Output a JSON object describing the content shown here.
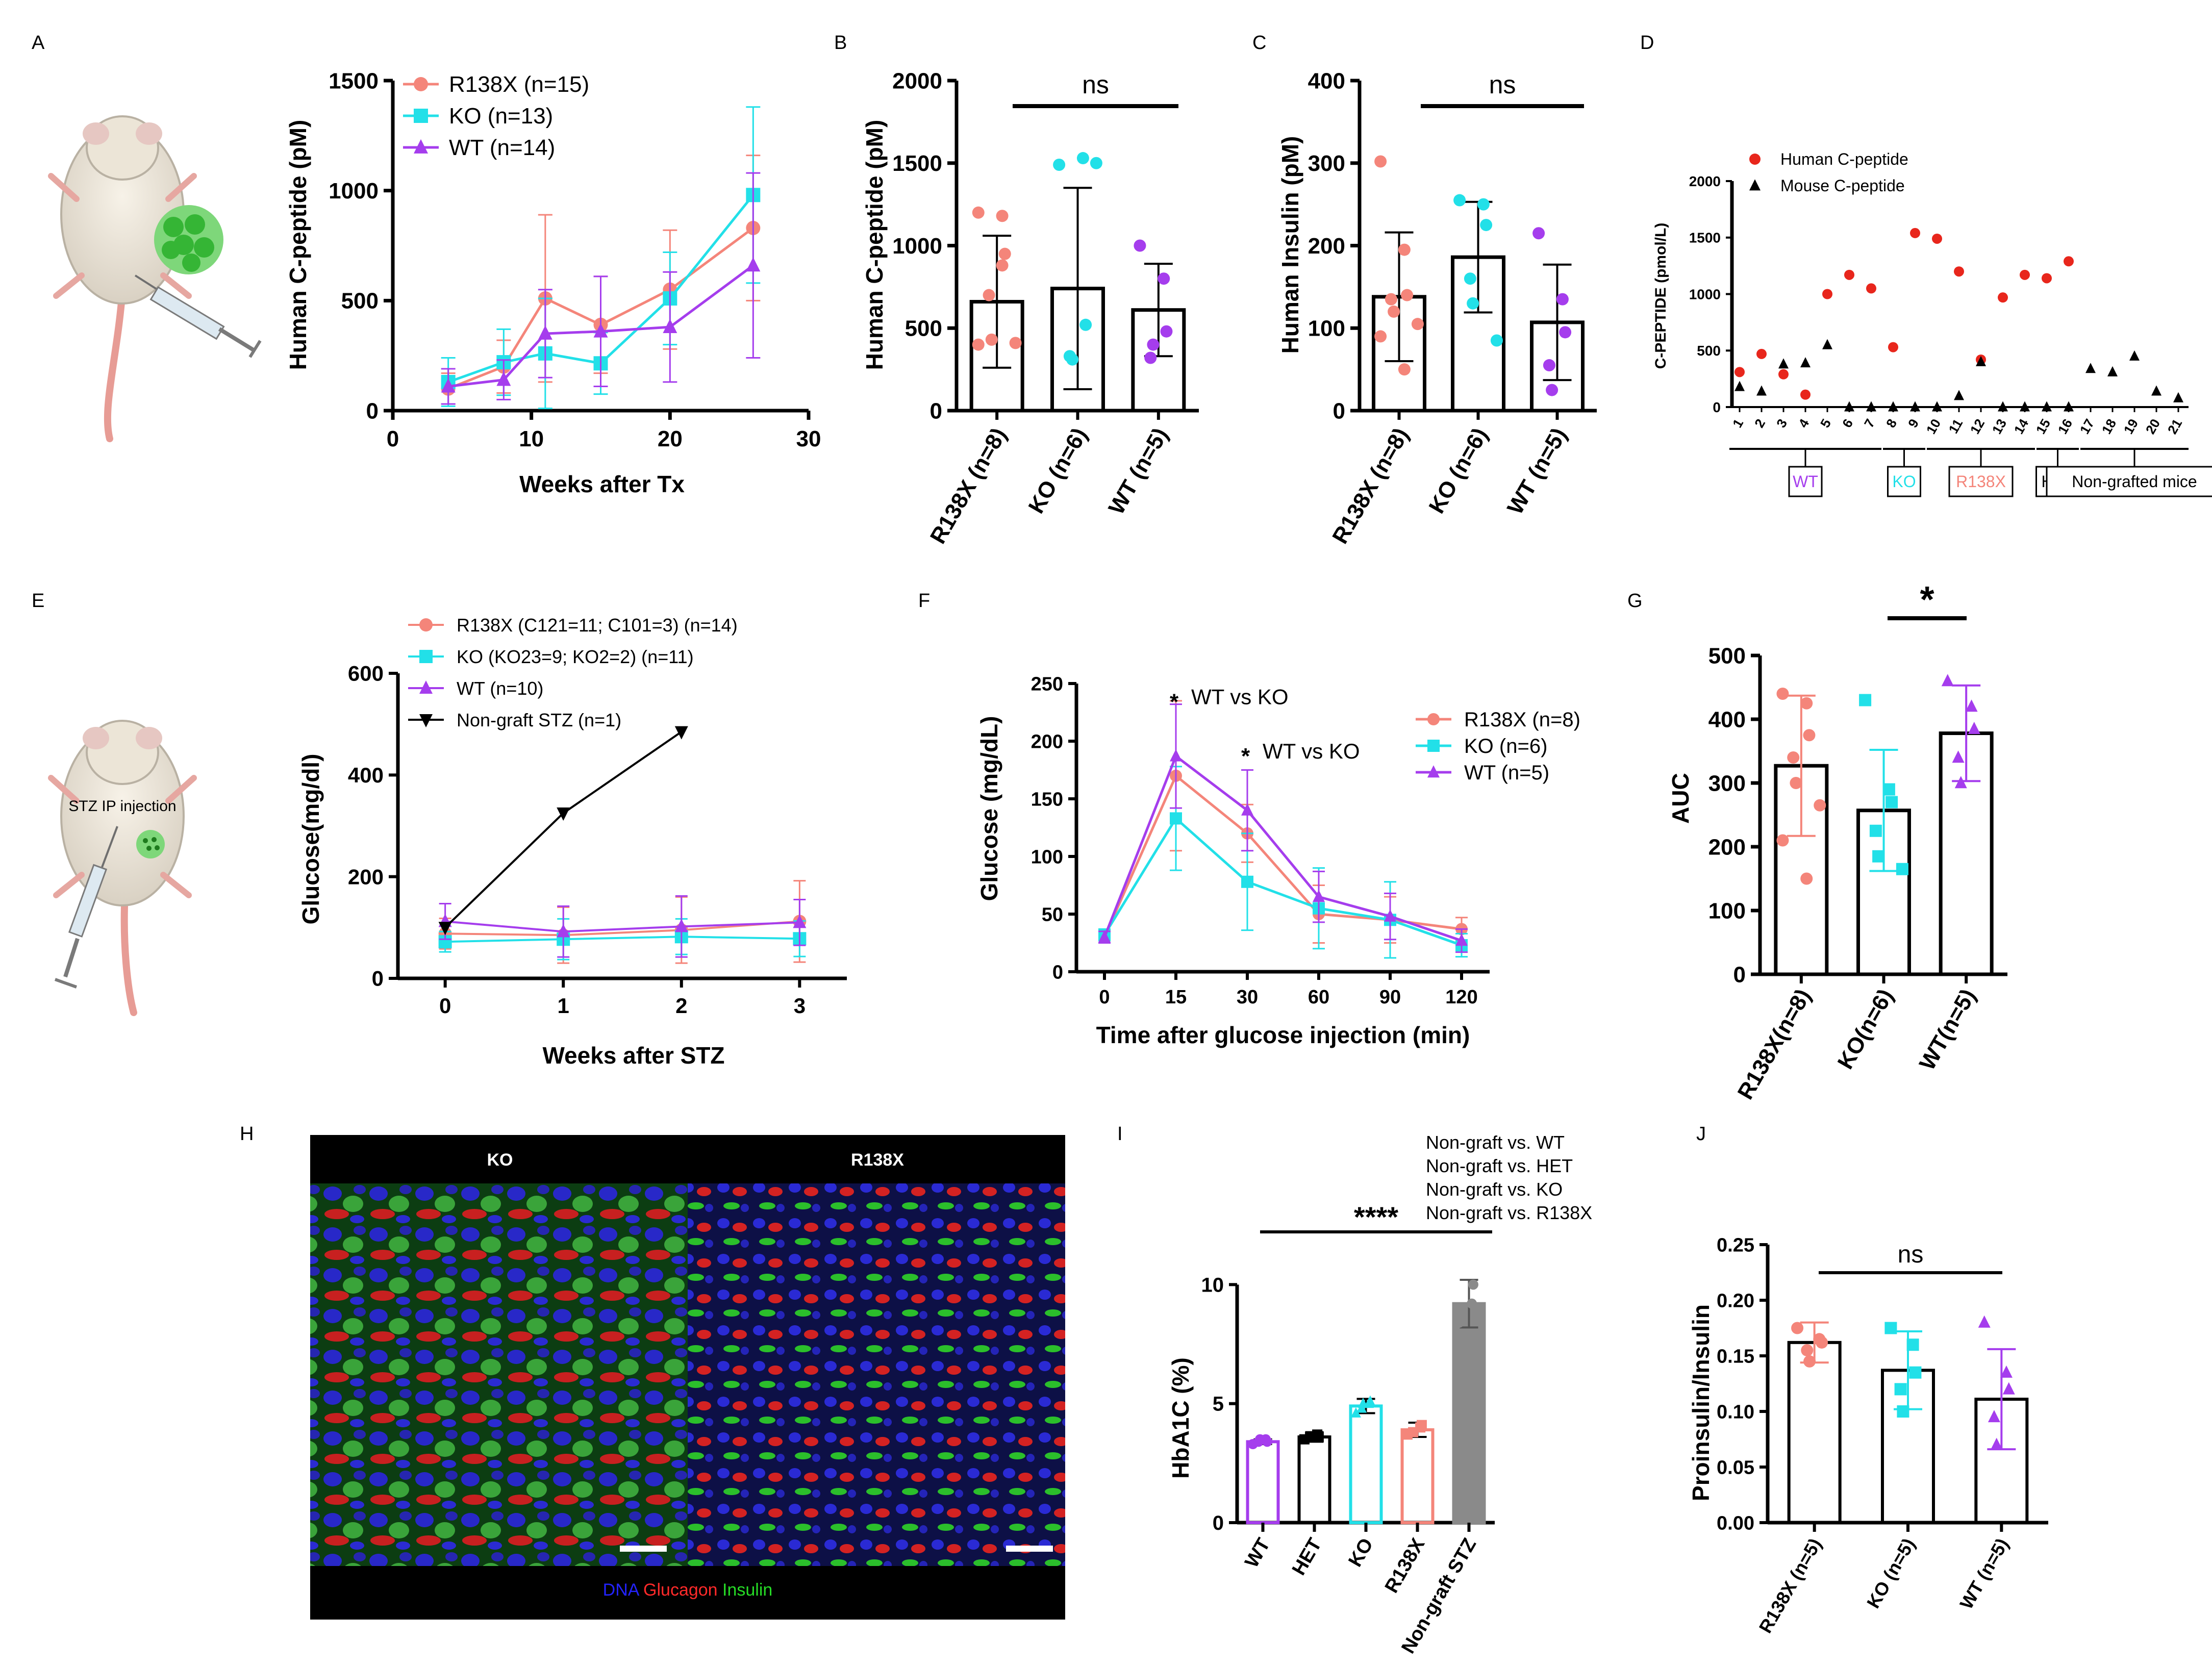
{
  "colors": {
    "r138x": "#f4857a",
    "ko": "#22e0e8",
    "wt": "#a53ded",
    "het": "#000000",
    "nongraft": "#8a8a8a",
    "human": "#e8261c",
    "mouse": "#000000"
  },
  "panel_letters": [
    "A",
    "B",
    "C",
    "D",
    "E",
    "F",
    "G",
    "H",
    "I",
    "J"
  ],
  "chart_data": [
    {
      "panel": "A",
      "type": "line",
      "xlabel": "Weeks after Tx",
      "ylabel": "Human C-peptide (pM)",
      "xlim": [
        0,
        30
      ],
      "ylim": [
        0,
        1500
      ],
      "xticks": [
        0,
        10,
        20,
        30
      ],
      "yticks": [
        0,
        500,
        1000,
        1500
      ],
      "legend": "top-left",
      "series": [
        {
          "name": "R138X (n=15)",
          "color_key": "r138x",
          "marker": "circle",
          "x": [
            4,
            8,
            11,
            15,
            20,
            26
          ],
          "y": [
            100,
            200,
            510,
            390,
            550,
            830
          ],
          "err": [
            70,
            120,
            380,
            220,
            270,
            330
          ]
        },
        {
          "name": "KO (n=13)",
          "color_key": "ko",
          "marker": "square",
          "x": [
            4,
            8,
            11,
            15,
            20,
            26
          ],
          "y": [
            130,
            220,
            260,
            215,
            510,
            980
          ],
          "err": [
            110,
            150,
            250,
            140,
            210,
            400
          ]
        },
        {
          "name": "WT (n=14)",
          "color_key": "wt",
          "marker": "triangle",
          "x": [
            4,
            8,
            11,
            15,
            20,
            26
          ],
          "y": [
            110,
            140,
            350,
            360,
            380,
            660
          ],
          "err": [
            80,
            90,
            200,
            250,
            250,
            420
          ]
        }
      ]
    },
    {
      "panel": "B",
      "type": "bar",
      "ylabel": "Human C-peptide (pM)",
      "ylim": [
        0,
        2000
      ],
      "yticks": [
        0,
        500,
        1000,
        1500,
        2000
      ],
      "categories": [
        "R138X (n=8)",
        "KO (n=6)",
        "WT (n=5)"
      ],
      "values": [
        660,
        740,
        610
      ],
      "errors": [
        400,
        610,
        280
      ],
      "points": [
        [
          1200,
          1180,
          950,
          700,
          430,
          410,
          400,
          880
        ],
        [
          1490,
          1530,
          520,
          330,
          310,
          1500
        ],
        [
          1000,
          800,
          480,
          320,
          400
        ]
      ],
      "color_keys": [
        "r138x",
        "ko",
        "wt"
      ],
      "annotation": "ns"
    },
    {
      "panel": "C",
      "type": "bar",
      "ylabel": "Human Insulin (pM)",
      "ylim": [
        0,
        400
      ],
      "yticks": [
        0,
        100,
        200,
        300,
        400
      ],
      "categories": [
        "R138X (n=8)",
        "KO (n=6)",
        "WT (n=5)"
      ],
      "values": [
        138,
        186,
        107
      ],
      "errors": [
        78,
        67,
        70
      ],
      "points": [
        [
          302,
          195,
          140,
          135,
          120,
          105,
          90,
          50
        ],
        [
          255,
          250,
          225,
          160,
          130,
          85
        ],
        [
          215,
          135,
          95,
          55,
          25
        ]
      ],
      "color_keys": [
        "r138x",
        "ko",
        "wt"
      ],
      "annotation": "ns"
    },
    {
      "panel": "D",
      "type": "scatter",
      "ylabel": "C-PEPTIDE (pmol/L)",
      "ylim": [
        0,
        2000
      ],
      "yticks": [
        0,
        500,
        1000,
        1500,
        2000
      ],
      "categories": [
        "1",
        "2",
        "3",
        "4",
        "5",
        "6",
        "7",
        "8",
        "9",
        "10",
        "11",
        "12",
        "13",
        "14",
        "15",
        "16",
        "17",
        "18",
        "19",
        "20",
        "21"
      ],
      "series": [
        {
          "name": "Human C-peptide",
          "color_key": "human",
          "marker": "circle",
          "x": [
            1,
            2,
            3,
            4,
            5,
            6,
            7,
            8,
            9,
            10,
            11,
            12,
            13,
            14,
            15,
            16
          ],
          "y": [
            310,
            470,
            290,
            110,
            1000,
            1170,
            1050,
            530,
            1540,
            1490,
            1200,
            420,
            970,
            1170,
            1140,
            1290
          ]
        },
        {
          "name": "Mouse C-peptide",
          "color_key": "mouse",
          "marker": "triangle",
          "x": [
            1,
            2,
            3,
            4,
            5,
            6,
            7,
            8,
            9,
            10,
            11,
            12,
            13,
            14,
            15,
            16,
            17,
            18,
            19,
            20,
            21
          ],
          "y": [
            180,
            140,
            380,
            390,
            550,
            0,
            0,
            0,
            0,
            0,
            100,
            400,
            0,
            0,
            0,
            0,
            340,
            310,
            450,
            140,
            80
          ]
        }
      ],
      "groups": [
        {
          "label": "WT",
          "from": 1,
          "to": 7,
          "color_key": "wt"
        },
        {
          "label": "KO",
          "from": 8,
          "to": 9,
          "color_key": "ko"
        },
        {
          "label": "R138X",
          "from": 10,
          "to": 14,
          "color_key": "r138x"
        },
        {
          "label": "HET",
          "from": 15,
          "to": 16,
          "color_key": "het"
        },
        {
          "label": "Non-grafted mice",
          "from": 17,
          "to": 21,
          "color_key": "het"
        }
      ]
    },
    {
      "panel": "E",
      "type": "line",
      "xlabel": "Weeks after STZ",
      "ylabel": "Glucose(mg/dl)",
      "xlim": [
        -0.4,
        3.4
      ],
      "ylim": [
        0,
        600
      ],
      "xticks": [
        0,
        1,
        2,
        3
      ],
      "yticks": [
        0,
        200,
        400,
        600
      ],
      "legend": "top-left",
      "series": [
        {
          "name": "R138X (C121=11; C101=3) (n=14)",
          "color_key": "r138x",
          "marker": "circle",
          "x": [
            0,
            1,
            2,
            3
          ],
          "y": [
            88,
            85,
            95,
            112
          ],
          "err": [
            30,
            55,
            65,
            80
          ]
        },
        {
          "name": "KO (KO23=9; KO2=2) (n=11)",
          "color_key": "ko",
          "marker": "square",
          "x": [
            0,
            1,
            2,
            3
          ],
          "y": [
            72,
            77,
            82,
            78
          ],
          "err": [
            20,
            40,
            35,
            35
          ]
        },
        {
          "name": "WT (n=10)",
          "color_key": "wt",
          "marker": "triangle",
          "x": [
            0,
            1,
            2,
            3
          ],
          "y": [
            112,
            92,
            102,
            110
          ],
          "err": [
            35,
            50,
            60,
            45
          ]
        },
        {
          "name": "Non-graft STZ (n=1)",
          "color_key": "het",
          "marker": "down-triangle",
          "x": [
            0,
            1,
            2
          ],
          "y": [
            100,
            325,
            485
          ],
          "err": [
            0,
            0,
            0
          ]
        }
      ]
    },
    {
      "panel": "F",
      "type": "line",
      "xlabel": "Time after glucose injection (min)",
      "ylabel": "Glucose (mg/dL)",
      "ylim": [
        0,
        250
      ],
      "yticks": [
        0,
        50,
        100,
        150,
        200,
        250
      ],
      "categories": [
        "0",
        "15",
        "30",
        "60",
        "90",
        "120"
      ],
      "legend": "right",
      "annotations": [
        {
          "label": "WT vs KO",
          "star": "*",
          "at": 1,
          "y": 232
        },
        {
          "label": "WT vs KO",
          "star": "*",
          "at": 2,
          "y": 185
        }
      ],
      "series": [
        {
          "name": "R138X (n=8)",
          "color_key": "r138x",
          "marker": "circle",
          "y": [
            30,
            170,
            120,
            50,
            45,
            37
          ],
          "err": [
            5,
            65,
            25,
            25,
            20,
            10
          ]
        },
        {
          "name": "KO (n=6)",
          "color_key": "ko",
          "marker": "square",
          "y": [
            32,
            133,
            78,
            55,
            45,
            23
          ],
          "err": [
            5,
            45,
            42,
            35,
            33,
            10
          ]
        },
        {
          "name": "WT (n=5)",
          "color_key": "wt",
          "marker": "triangle",
          "y": [
            30,
            187,
            140,
            65,
            48,
            27
          ],
          "err": [
            5,
            45,
            35,
            22,
            20,
            10
          ]
        }
      ]
    },
    {
      "panel": "G",
      "type": "bar",
      "ylabel": "AUC",
      "ylim": [
        0,
        500
      ],
      "yticks": [
        0,
        100,
        200,
        300,
        400,
        500
      ],
      "categories": [
        "R138X(n=8)",
        "KO(n=6)",
        "WT(n=5)"
      ],
      "values": [
        327,
        257,
        378
      ],
      "errors": [
        110,
        95,
        75
      ],
      "points": [
        [
          440,
          425,
          375,
          340,
          300,
          265,
          210,
          150
        ],
        [
          430,
          290,
          270,
          225,
          185,
          165
        ],
        [
          460,
          420,
          385,
          340,
          300
        ]
      ],
      "color_keys": [
        "r138x",
        "ko",
        "wt"
      ],
      "annotation": "*",
      "annotation_pair": [
        1,
        2
      ]
    },
    {
      "panel": "I",
      "type": "bar",
      "ylabel": "HbA1C (%)",
      "ylim": [
        0,
        12
      ],
      "yticks": [
        0,
        5,
        10
      ],
      "categories": [
        "WT",
        "HET",
        "KO",
        "R138X",
        "Non-graft STZ"
      ],
      "values": [
        3.4,
        3.6,
        4.9,
        3.9,
        9.2
      ],
      "errors": [
        0.1,
        0.2,
        0.3,
        0.3,
        1.0
      ],
      "points": [
        [
          3.3,
          3.5,
          3.4,
          3.4,
          3.5
        ],
        [
          3.5,
          3.7,
          3.6,
          3.6
        ],
        [
          4.6,
          5.0,
          5.1,
          4.8,
          5.0
        ],
        [
          3.7,
          4.0,
          4.1,
          3.8
        ],
        [
          8.4,
          9.2,
          10.0
        ]
      ],
      "color_keys": [
        "wt",
        "het",
        "ko",
        "r138x",
        "nongraft"
      ],
      "annotation": "****",
      "comparisons": [
        "Non-graft vs. WT",
        "Non-graft vs. HET",
        "Non-graft vs. KO",
        "Non-graft vs. R138X"
      ]
    },
    {
      "panel": "J",
      "type": "bar",
      "ylabel": "Proinsulin/Insulin",
      "ylim": [
        0,
        0.25
      ],
      "yticks": [
        "0.00",
        "0.05",
        "0.10",
        "0.15",
        "0.20",
        "0.25"
      ],
      "categories": [
        "R138X (n=5)",
        "KO (n=5)",
        "WT (n=5)"
      ],
      "values": [
        0.162,
        0.137,
        0.111
      ],
      "errors": [
        0.018,
        0.035,
        0.045
      ],
      "points": [
        [
          0.175,
          0.165,
          0.162,
          0.155,
          0.145
        ],
        [
          0.175,
          0.16,
          0.135,
          0.12,
          0.1
        ],
        [
          0.18,
          0.135,
          0.12,
          0.095,
          0.07
        ]
      ],
      "color_keys": [
        "r138x",
        "ko",
        "wt"
      ],
      "annotation": "ns"
    }
  ],
  "panel_a": {
    "illustration": "mouse-with-islet-graft"
  },
  "panel_e": {
    "illustration": "mouse-stz-injection",
    "caption": "STZ IP injection"
  },
  "panel_h": {
    "title_left": "KO",
    "title_right": "R138X",
    "legend": [
      {
        "label": "DNA",
        "color": "#2323ff"
      },
      {
        "label": "Glucagon",
        "color": "#ff2a2a"
      },
      {
        "label": "Insulin",
        "color": "#26dc26"
      }
    ]
  }
}
